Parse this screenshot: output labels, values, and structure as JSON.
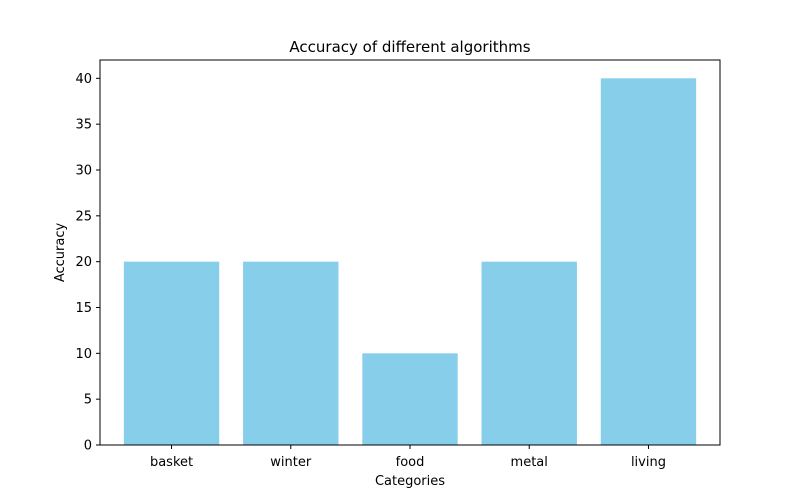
{
  "chart_data": {
    "type": "bar",
    "title": "Accuracy of different algorithms",
    "xlabel": "Categories",
    "ylabel": "Accuracy",
    "categories": [
      "basket",
      "winter",
      "food",
      "metal",
      "living"
    ],
    "values": [
      20,
      20,
      10,
      20,
      40
    ],
    "ylim": [
      0,
      42
    ],
    "yticks": [
      0,
      5,
      10,
      15,
      20,
      25,
      30,
      35,
      40
    ],
    "grid": false,
    "legend": "none",
    "bar_color": "#87ceeb"
  }
}
